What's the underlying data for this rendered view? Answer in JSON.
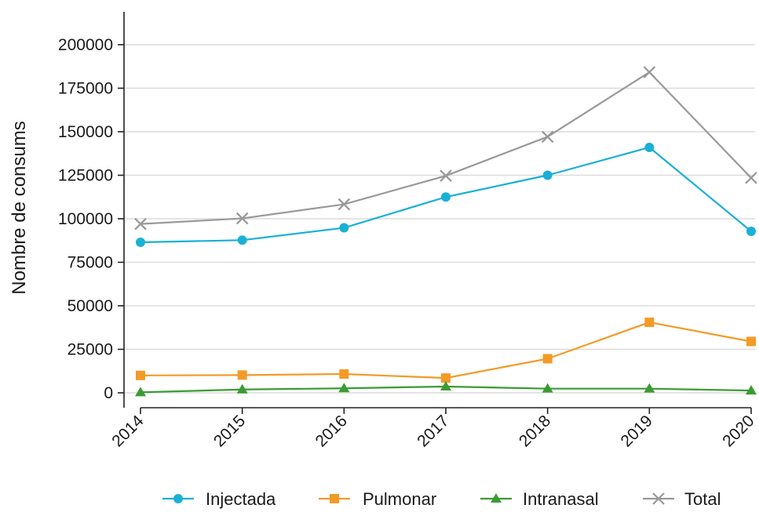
{
  "chart_data": {
    "type": "line",
    "title": "",
    "xlabel": "",
    "ylabel": "Nombre de consums",
    "categories": [
      "2014",
      "2015",
      "2016",
      "2017",
      "2018",
      "2019",
      "2020"
    ],
    "ylim": [
      -5000,
      220000
    ],
    "yticks": [
      0,
      25000,
      50000,
      75000,
      100000,
      125000,
      150000,
      175000,
      200000
    ],
    "ytick_labels": [
      "0",
      "25000",
      "50000",
      "75000",
      "100000",
      "125000",
      "150000",
      "175000",
      "200000"
    ],
    "grid": "horizontal",
    "legend_position": "bottom",
    "series": [
      {
        "name": "Injectada",
        "color": "#1ab0d6",
        "marker": "circle",
        "values": [
          86500,
          87700,
          94800,
          112500,
          125000,
          141000,
          92800
        ]
      },
      {
        "name": "Pulmonar",
        "color": "#f49a27",
        "marker": "square",
        "values": [
          10000,
          10200,
          10800,
          8500,
          19600,
          40500,
          29500
        ]
      },
      {
        "name": "Intranasal",
        "color": "#3b9b33",
        "marker": "triangle",
        "values": [
          300,
          1900,
          2600,
          3600,
          2400,
          2400,
          1300
        ]
      },
      {
        "name": "Total",
        "color": "#999999",
        "marker": "x",
        "values": [
          97000,
          100200,
          108300,
          124700,
          147100,
          184200,
          123500
        ]
      }
    ]
  }
}
